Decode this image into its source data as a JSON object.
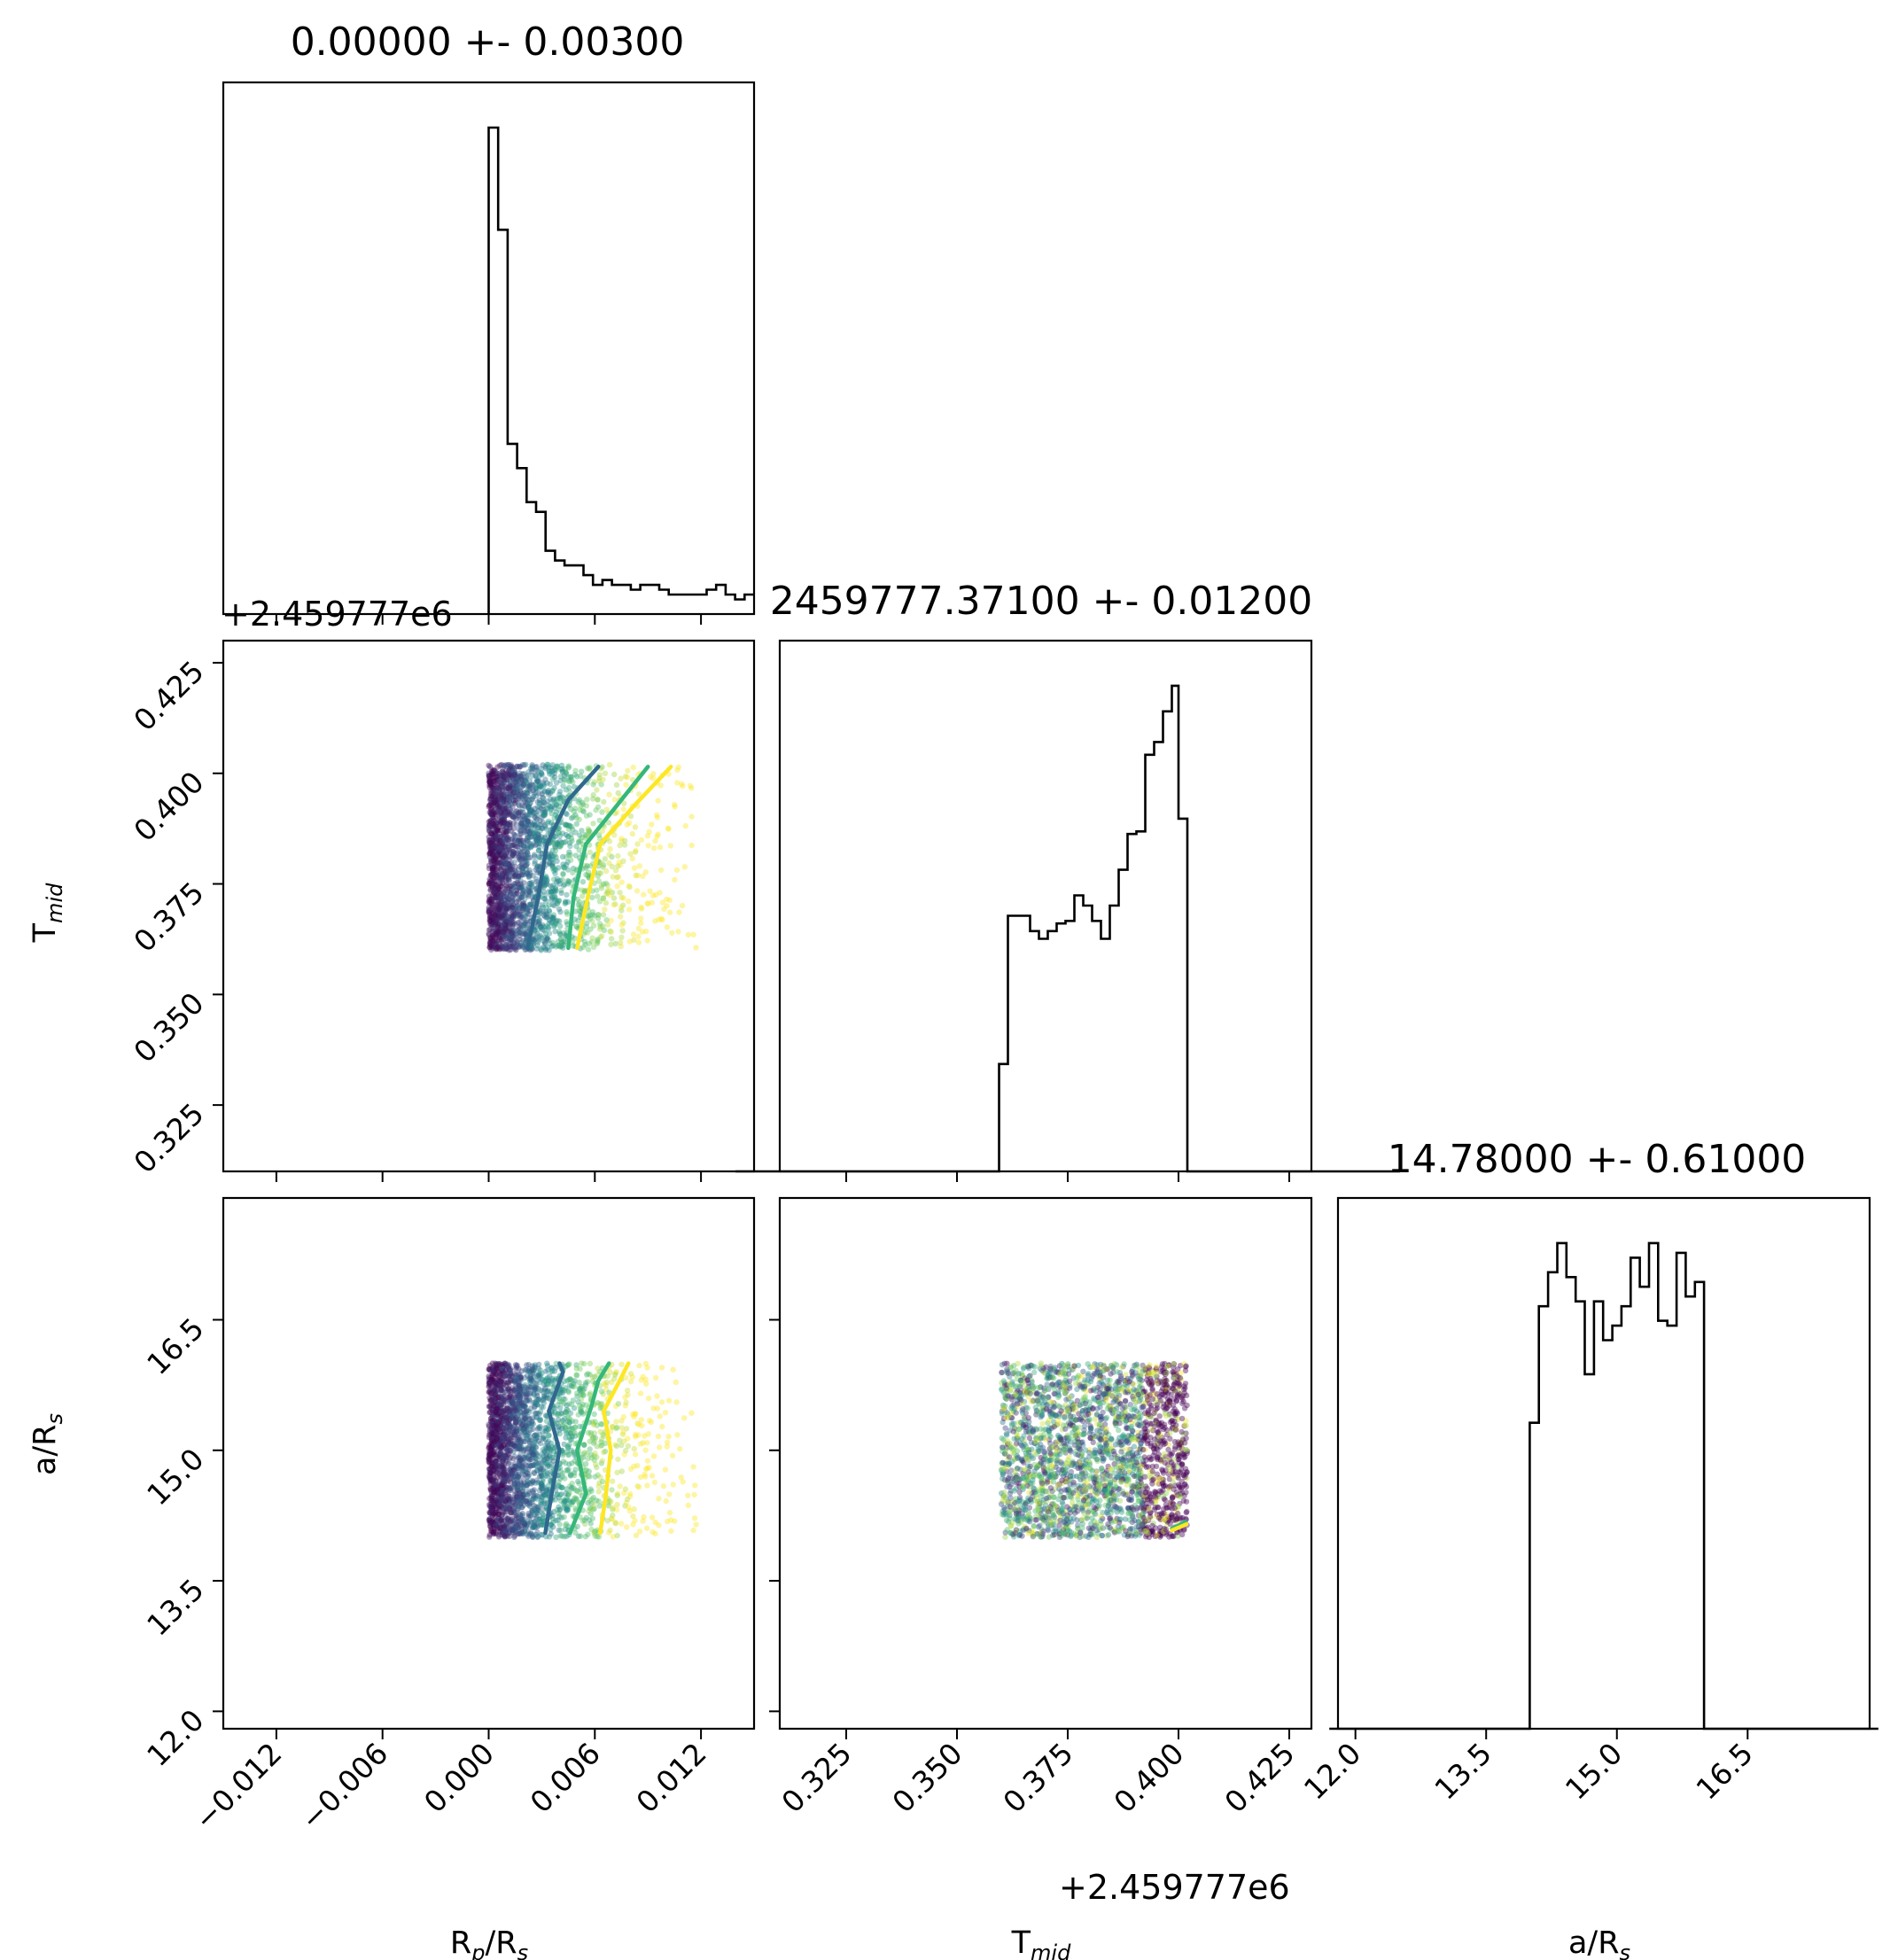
{
  "chart_data": {
    "type": "corner",
    "parameters": [
      {
        "key": "rp",
        "label": "R",
        "label_sub": "p",
        "label_tail": "/R",
        "label_tail_sub": "s"
      },
      {
        "key": "tmid",
        "label": "T",
        "label_sub": "mid",
        "label_tail": "",
        "label_tail_sub": ""
      },
      {
        "key": "ars",
        "label": "a/R",
        "label_sub": "s",
        "label_tail": "",
        "label_tail_sub": ""
      }
    ],
    "titles": [
      "0.00000 +- 0.00300",
      "2459777.37100 +- 0.01200",
      "14.78000 +- 0.61000"
    ],
    "offset_text": "+2.459777e6",
    "ranges": {
      "rp": [
        -0.015,
        0.015
      ],
      "tmid": [
        0.31,
        0.43
      ],
      "ars": [
        11.8,
        17.9
      ]
    },
    "ticks": {
      "rp": {
        "values": [
          -0.012,
          -0.006,
          0.0,
          0.006,
          0.012
        ],
        "labels": [
          "−0.012",
          "−0.006",
          "0.000",
          "0.006",
          "0.012"
        ]
      },
      "tmid": {
        "values": [
          0.325,
          0.35,
          0.375,
          0.4,
          0.425
        ],
        "labels": [
          "0.325",
          "0.350",
          "0.375",
          "0.400",
          "0.425"
        ]
      },
      "ars": {
        "values": [
          12.0,
          13.5,
          15.0,
          16.5
        ],
        "labels": [
          "12.0",
          "13.5",
          "15.0",
          "16.5"
        ]
      }
    },
    "histograms": {
      "rp": {
        "edges_range": [
          0.0,
          0.015
        ],
        "counts": [
          100,
          79,
          35,
          30,
          23,
          21,
          13,
          11,
          10,
          10,
          8,
          6,
          7,
          6,
          6,
          5,
          6,
          6,
          5,
          4,
          4,
          4,
          4,
          5,
          6,
          4,
          3,
          4
        ]
      },
      "tmid": {
        "bins": [
          [
            0.3,
            0.3595,
            0
          ],
          [
            0.3595,
            0.3615,
            42
          ],
          [
            0.3615,
            0.3665,
            100
          ],
          [
            0.3665,
            0.3685,
            94
          ],
          [
            0.3685,
            0.3705,
            91
          ],
          [
            0.3705,
            0.3725,
            94
          ],
          [
            0.3725,
            0.3745,
            97
          ],
          [
            0.3745,
            0.3765,
            98
          ],
          [
            0.3765,
            0.3785,
            108
          ],
          [
            0.3785,
            0.3805,
            104
          ],
          [
            0.3805,
            0.3825,
            98
          ],
          [
            0.3825,
            0.3845,
            91
          ],
          [
            0.3845,
            0.3865,
            104
          ],
          [
            0.3865,
            0.3885,
            118
          ],
          [
            0.3885,
            0.3905,
            132
          ],
          [
            0.3905,
            0.3925,
            133
          ],
          [
            0.3925,
            0.3945,
            163
          ],
          [
            0.3945,
            0.3965,
            168
          ],
          [
            0.3965,
            0.3985,
            180
          ],
          [
            0.3985,
            0.4,
            190
          ],
          [
            0.4,
            0.402,
            138
          ],
          [
            0.402,
            0.45,
            0
          ]
        ]
      },
      "ars": {
        "edges_range": [
          14.0,
          16.0
        ],
        "counts": [
          63,
          87,
          94,
          100,
          93,
          88,
          73,
          88,
          80,
          83,
          87,
          97,
          91,
          100,
          84,
          83,
          98,
          89,
          92
        ]
      }
    },
    "scatter": {
      "rp_tmid": {
        "x_range": [
          0.0,
          0.015
        ],
        "y_range": [
          0.36,
          0.402
        ]
      },
      "rp_ars": {
        "x_range": [
          0.0,
          0.015
        ],
        "y_range": [
          14.0,
          16.0
        ]
      },
      "tmid_ars": {
        "x_range": [
          0.36,
          0.402
        ],
        "y_range": [
          14.0,
          16.0
        ]
      }
    },
    "colors": {
      "axes": "#000000",
      "dark": "#440154",
      "blue": "#31688e",
      "green": "#35b779",
      "yellow": "#fde725"
    }
  }
}
